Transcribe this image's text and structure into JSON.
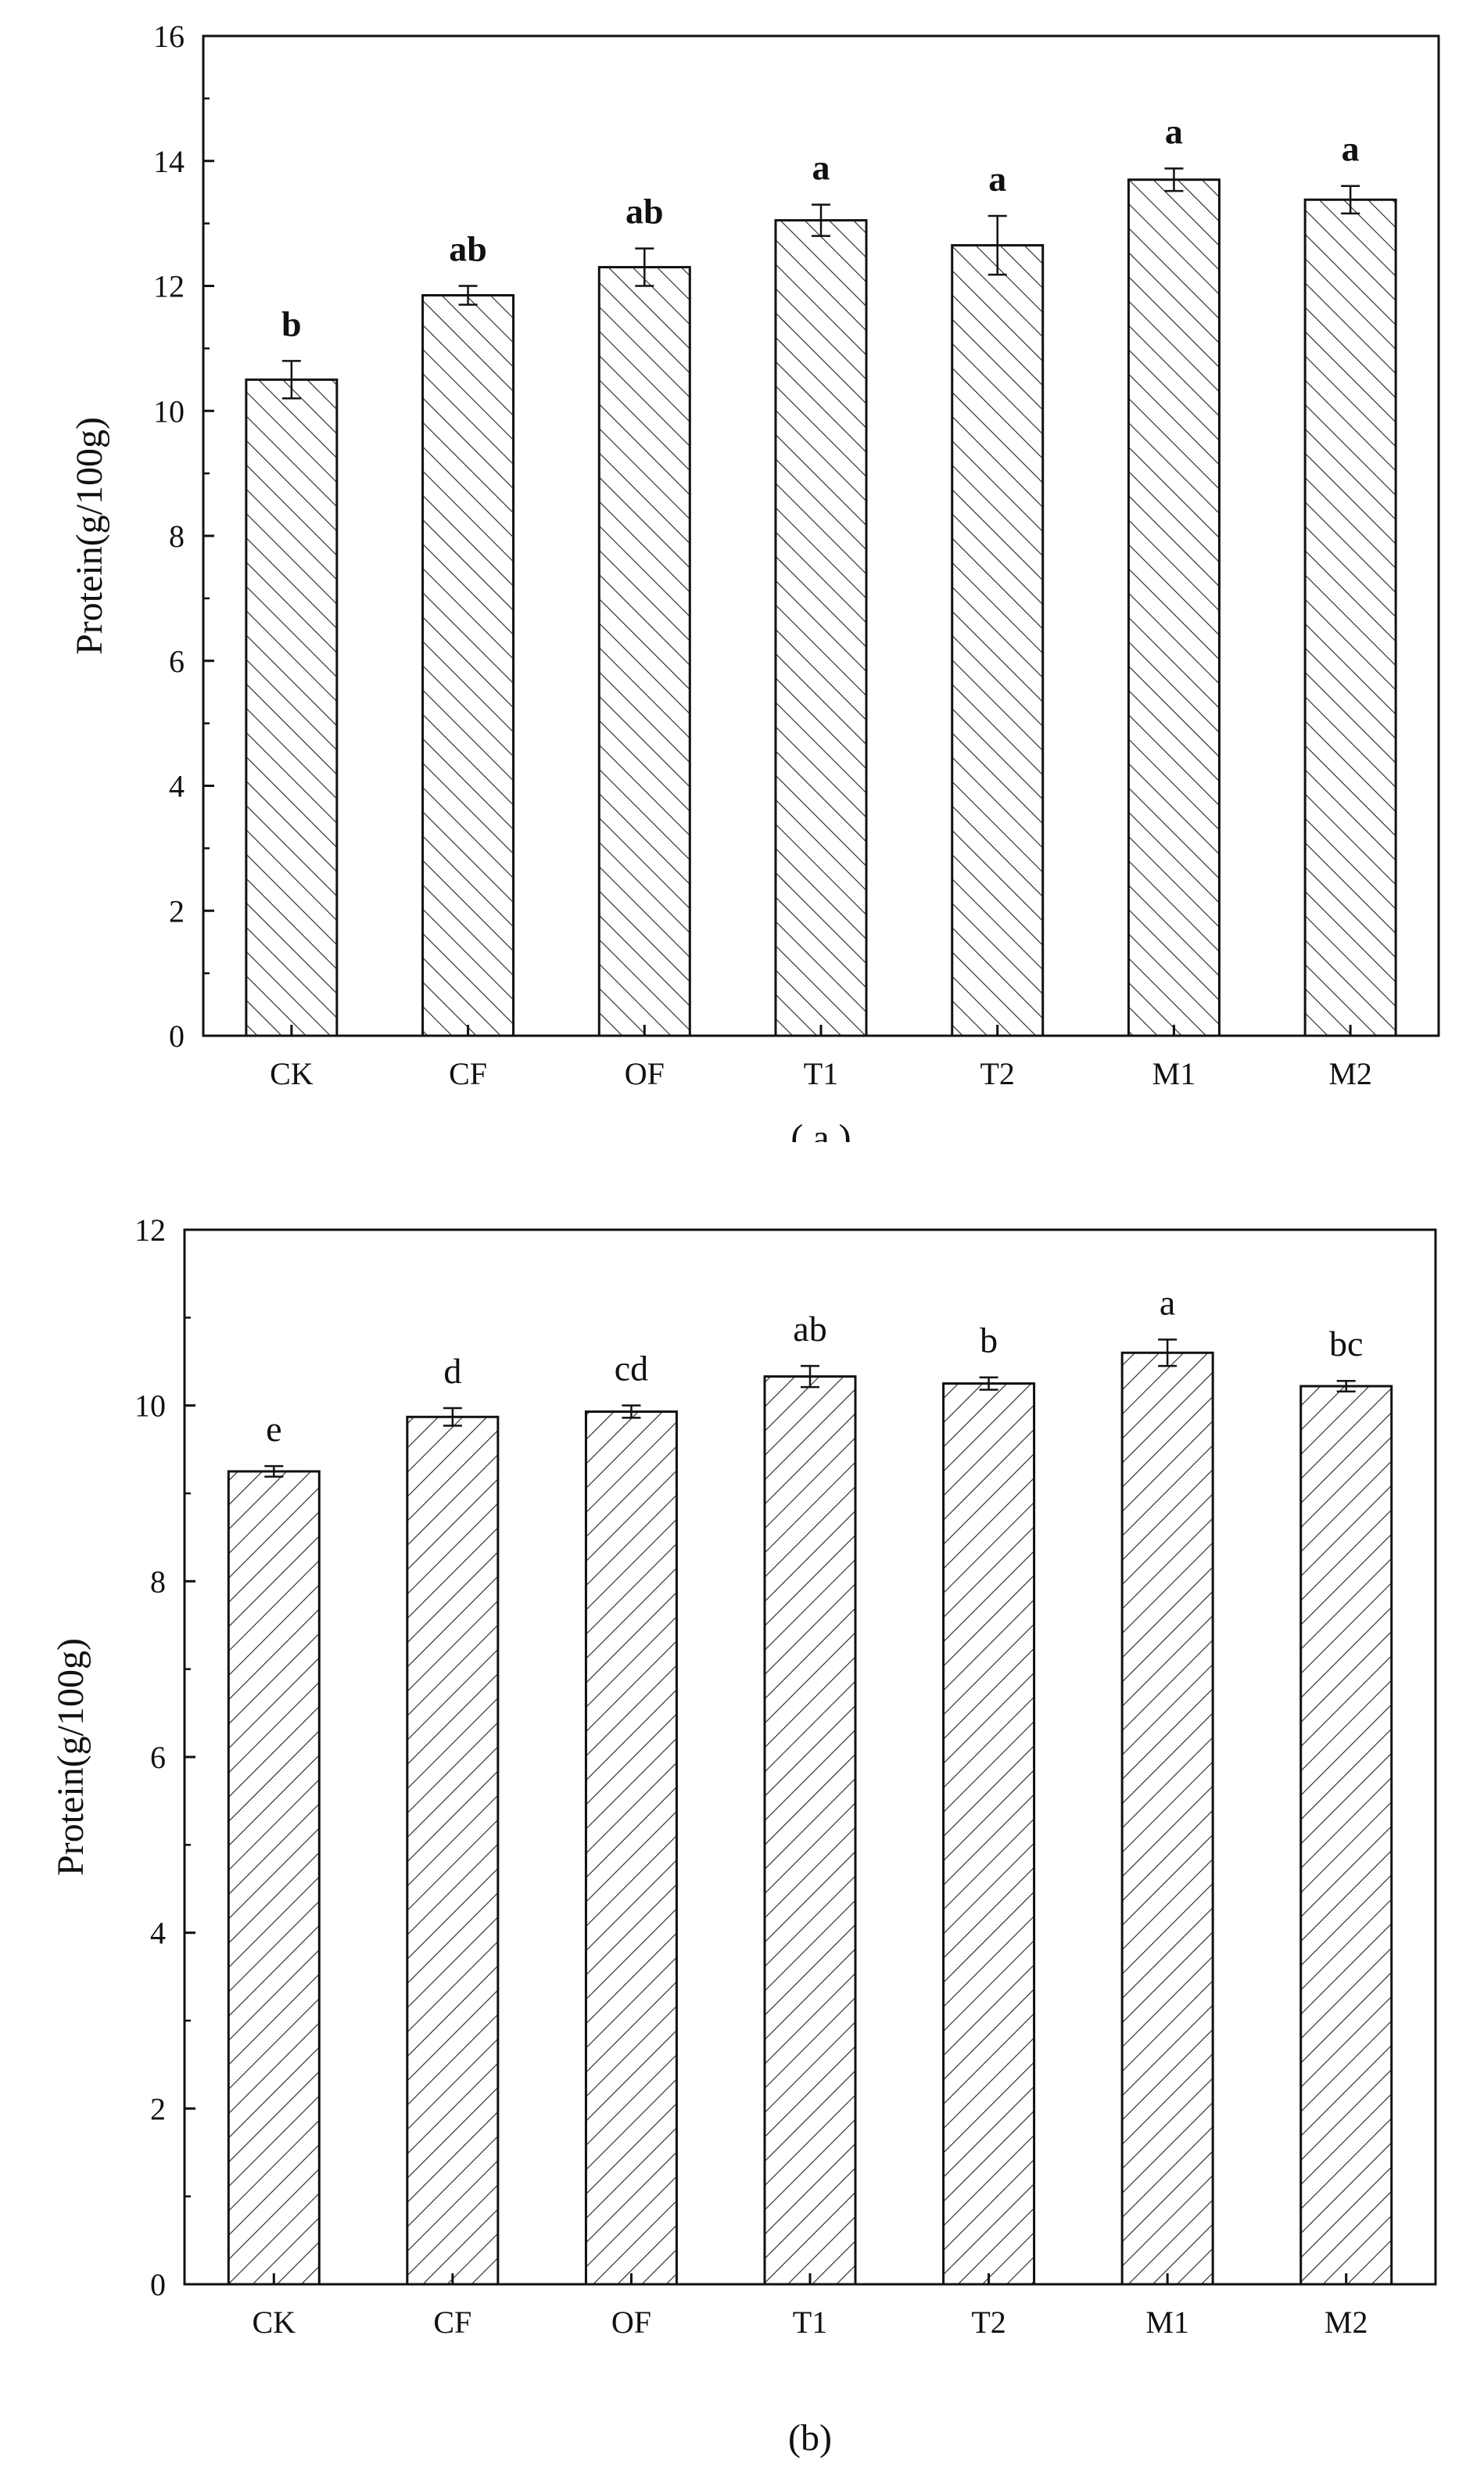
{
  "chart_data": [
    {
      "type": "bar",
      "panel": "( a )",
      "ylabel": "Protein(g/100g)",
      "xlabel": "",
      "ylim": [
        0,
        16
      ],
      "yticks": [
        0,
        2,
        4,
        6,
        8,
        10,
        12,
        14,
        16
      ],
      "categories": [
        "CK",
        "CF",
        "OF",
        "T1",
        "T2",
        "M1",
        "M2"
      ],
      "values": [
        10.5,
        11.85,
        12.3,
        13.05,
        12.65,
        13.7,
        13.38
      ],
      "errors": [
        0.3,
        0.15,
        0.3,
        0.25,
        0.47,
        0.18,
        0.22
      ],
      "significance": [
        "b",
        "ab",
        "ab",
        "a",
        "a",
        "a",
        "a"
      ],
      "significance_bold": true,
      "hatch": "forward-slash",
      "grid": false
    },
    {
      "type": "bar",
      "panel": "(b)",
      "ylabel": "Protein(g/100g)",
      "xlabel": "",
      "ylim": [
        0,
        12
      ],
      "yticks": [
        0,
        2,
        4,
        6,
        8,
        10,
        12
      ],
      "categories": [
        "CK",
        "CF",
        "OF",
        "T1",
        "T2",
        "M1",
        "M2"
      ],
      "values": [
        9.25,
        9.87,
        9.93,
        10.33,
        10.25,
        10.6,
        10.22
      ],
      "errors": [
        0.06,
        0.1,
        0.07,
        0.12,
        0.07,
        0.15,
        0.06
      ],
      "significance": [
        "e",
        "d",
        "cd",
        "ab",
        "b",
        "a",
        "bc"
      ],
      "significance_bold": false,
      "hatch": "back-slash",
      "grid": false
    }
  ]
}
